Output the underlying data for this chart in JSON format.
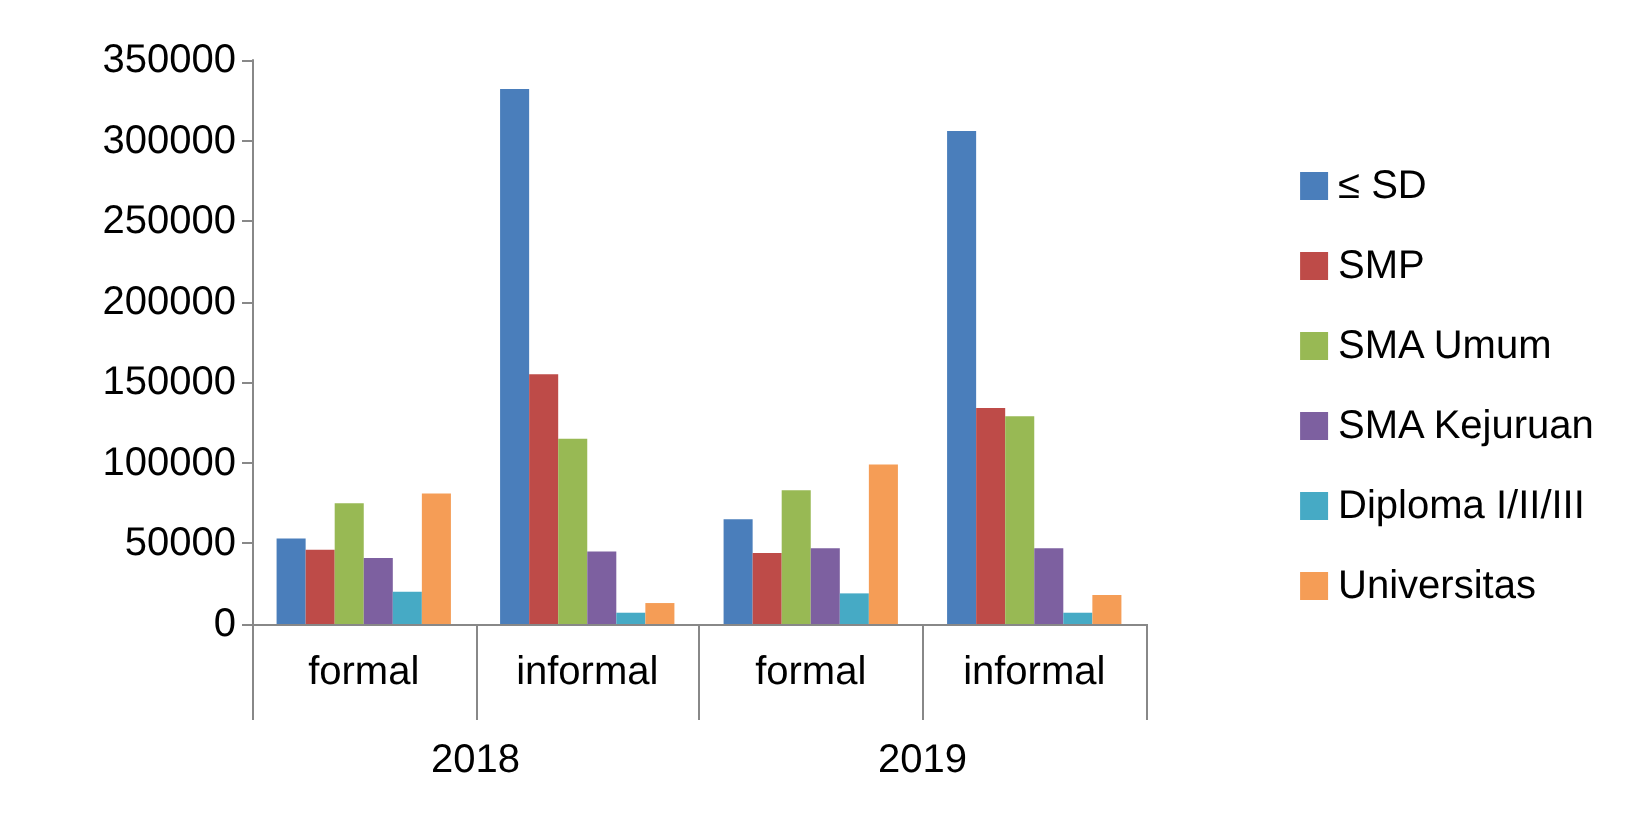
{
  "chart_data": {
    "type": "bar",
    "categories": [
      "formal",
      "informal",
      "formal",
      "informal"
    ],
    "series": [
      {
        "name": "≤ SD",
        "color": "#4a7ebb",
        "values": [
          53000,
          332000,
          65000,
          306000
        ]
      },
      {
        "name": "SMP",
        "color": "#be4b48",
        "values": [
          46000,
          155000,
          44000,
          134000
        ]
      },
      {
        "name": "SMA Umum",
        "color": "#98b954",
        "values": [
          75000,
          115000,
          83000,
          129000
        ]
      },
      {
        "name": "SMA Kejuruan",
        "color": "#7d60a0",
        "values": [
          41000,
          45000,
          47000,
          47000
        ]
      },
      {
        "name": "Diploma I/II/III",
        "color": "#46aac5",
        "values": [
          20000,
          7000,
          19000,
          7000
        ]
      },
      {
        "name": "Universitas",
        "color": "#f59d56",
        "values": [
          81000,
          13000,
          99000,
          18000
        ]
      }
    ],
    "annotations": [
      "2018",
      "2019"
    ],
    "ylim": [
      0,
      350000
    ],
    "yticks": [
      0,
      50000,
      100000,
      150000,
      200000,
      250000,
      300000,
      350000
    ],
    "grid": false,
    "legend": "right"
  }
}
